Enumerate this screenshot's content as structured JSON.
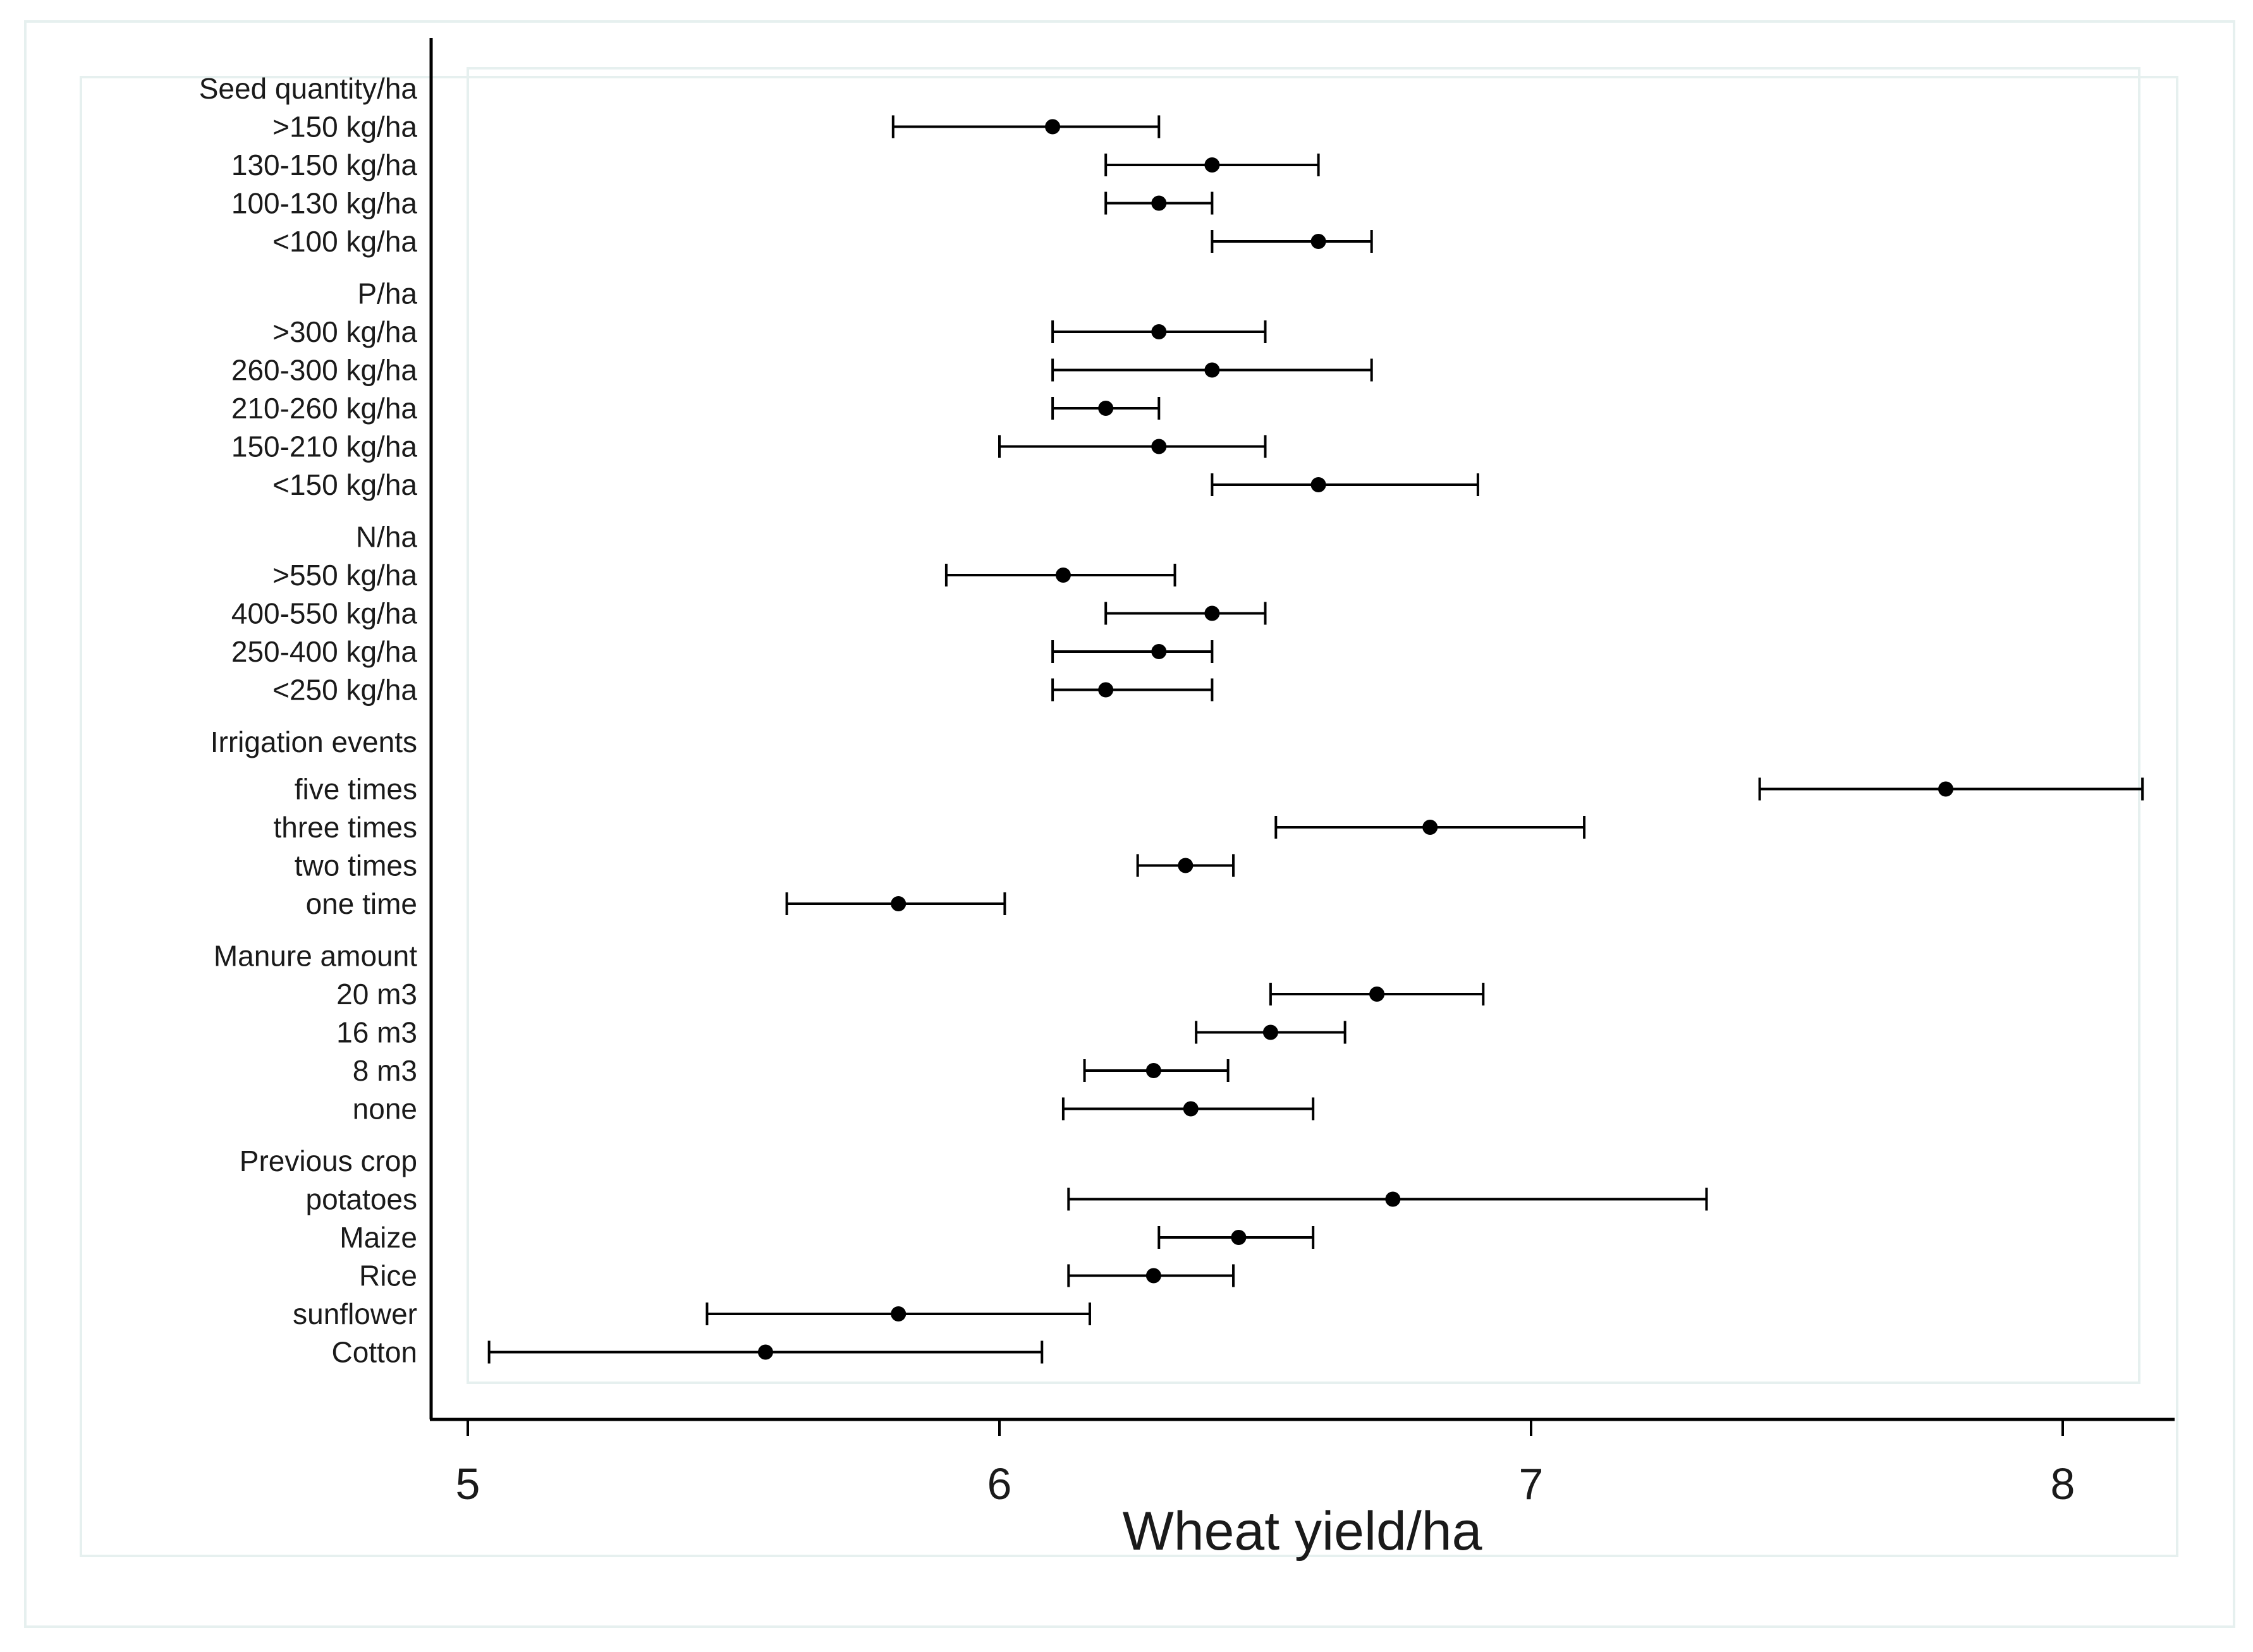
{
  "chart_data": {
    "type": "forest",
    "xlabel": "Wheat yield/ha",
    "xlim": [
      5,
      8.2
    ],
    "x_ticks": [
      5,
      6,
      7,
      8
    ],
    "x_tick_labels": [
      "5",
      "6",
      "7",
      "8"
    ],
    "colors": {
      "marker": "#000000",
      "frame": "#e6f0ef",
      "text": "#1a1a1a"
    },
    "groups": [
      {
        "title": "Seed quantity/ha",
        "rows": [
          {
            "label": ">150 kg/ha",
            "estimate": 6.1,
            "low": 5.8,
            "high": 6.3
          },
          {
            "label": "130-150 kg/ha",
            "estimate": 6.4,
            "low": 6.2,
            "high": 6.6
          },
          {
            "label": "100-130 kg/ha",
            "estimate": 6.3,
            "low": 6.2,
            "high": 6.4
          },
          {
            "label": "<100 kg/ha",
            "estimate": 6.6,
            "low": 6.4,
            "high": 6.7
          }
        ]
      },
      {
        "title": "P/ha",
        "rows": [
          {
            "label": ">300 kg/ha",
            "estimate": 6.3,
            "low": 6.1,
            "high": 6.5
          },
          {
            "label": "260-300 kg/ha",
            "estimate": 6.4,
            "low": 6.1,
            "high": 6.7
          },
          {
            "label": "210-260 kg/ha",
            "estimate": 6.2,
            "low": 6.1,
            "high": 6.3
          },
          {
            "label": "150-210 kg/ha",
            "estimate": 6.3,
            "low": 6.0,
            "high": 6.5
          },
          {
            "label": "<150 kg/ha",
            "estimate": 6.6,
            "low": 6.4,
            "high": 6.9
          }
        ]
      },
      {
        "title": "N/ha",
        "rows": [
          {
            "label": ">550 kg/ha",
            "estimate": 6.12,
            "low": 5.9,
            "high": 6.33
          },
          {
            "label": "400-550 kg/ha",
            "estimate": 6.4,
            "low": 6.2,
            "high": 6.5
          },
          {
            "label": "250-400 kg/ha",
            "estimate": 6.3,
            "low": 6.1,
            "high": 6.4
          },
          {
            "label": "<250 kg/ha",
            "estimate": 6.2,
            "low": 6.1,
            "high": 6.4
          }
        ]
      },
      {
        "title": "Irrigation events",
        "rows": [
          {
            "label": "five times",
            "estimate": 7.78,
            "low": 7.43,
            "high": 8.15
          },
          {
            "label": "three times",
            "estimate": 6.81,
            "low": 6.52,
            "high": 7.1
          },
          {
            "label": "two times",
            "estimate": 6.35,
            "low": 6.26,
            "high": 6.44
          },
          {
            "label": "one time",
            "estimate": 5.81,
            "low": 5.6,
            "high": 6.01
          }
        ]
      },
      {
        "title": "Manure amount",
        "rows": [
          {
            "label": "20 m3",
            "estimate": 6.71,
            "low": 6.51,
            "high": 6.91
          },
          {
            "label": "16 m3",
            "estimate": 6.51,
            "low": 6.37,
            "high": 6.65
          },
          {
            "label": "8 m3",
            "estimate": 6.29,
            "low": 6.16,
            "high": 6.43
          },
          {
            "label": "none",
            "estimate": 6.36,
            "low": 6.12,
            "high": 6.59
          }
        ]
      },
      {
        "title": "Previous crop",
        "rows": [
          {
            "label": "potatoes",
            "estimate": 6.74,
            "low": 6.13,
            "high": 7.33
          },
          {
            "label": "Maize",
            "estimate": 6.45,
            "low": 6.3,
            "high": 6.59
          },
          {
            "label": "Rice",
            "estimate": 6.29,
            "low": 6.13,
            "high": 6.44
          },
          {
            "label": "sunflower",
            "estimate": 5.81,
            "low": 5.45,
            "high": 6.17
          },
          {
            "label": "Cotton",
            "estimate": 5.56,
            "low": 5.04,
            "high": 6.08
          }
        ]
      }
    ]
  }
}
